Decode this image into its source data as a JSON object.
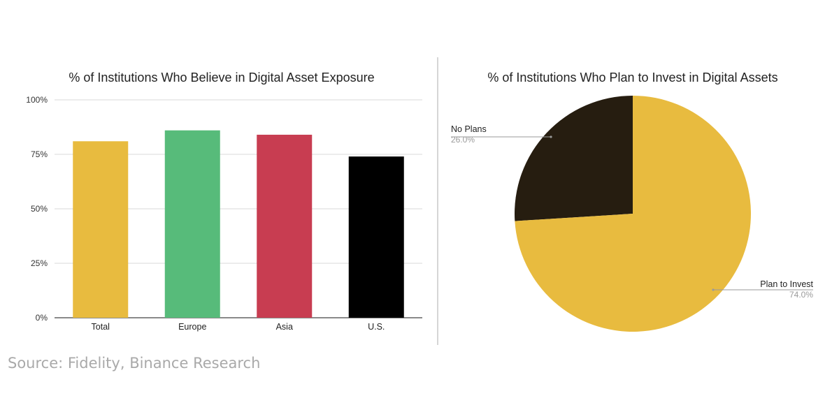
{
  "source": "Source: Fidelity, Binance Research",
  "chart_data": [
    {
      "type": "bar",
      "title": "% of Institutions Who Believe in Digital Asset Exposure",
      "categories": [
        "Total",
        "Europe",
        "Asia",
        "U.S."
      ],
      "values": [
        81,
        86,
        84,
        74
      ],
      "colors": [
        "#e8bb3f",
        "#57bb7a",
        "#c83d51",
        "#000000"
      ],
      "ylim": [
        0,
        100
      ],
      "yticks": [
        0,
        25,
        50,
        75,
        100
      ],
      "ytick_labels": [
        "0%",
        "25%",
        "50%",
        "75%",
        "100%"
      ],
      "grid": true
    },
    {
      "type": "pie",
      "title": "% of Institutions Who Plan to Invest in Digital Assets",
      "slices": [
        {
          "label": "No Plans",
          "value": 26.0,
          "pct_label": "26.0%",
          "color": "#261d10"
        },
        {
          "label": "Plan to Invest",
          "value": 74.0,
          "pct_label": "74.0%",
          "color": "#e8bb3f"
        }
      ]
    }
  ]
}
